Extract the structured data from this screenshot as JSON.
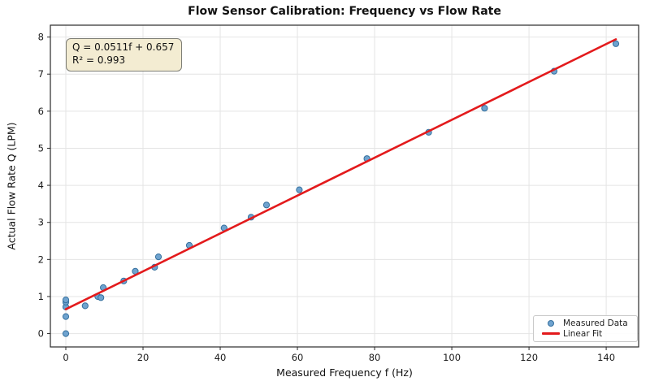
{
  "title": "Flow Sensor Calibration: Frequency vs Flow Rate",
  "annotation": {
    "line1": "Q = 0.0511f + 0.657",
    "line2": "R² = 0.993"
  },
  "legend": {
    "items": [
      {
        "label": "Measured Data",
        "marker": "scatter-dot"
      },
      {
        "label": "Linear Fit",
        "marker": "red-line"
      }
    ],
    "position": "lower right"
  },
  "colors": {
    "marker_fill": "#6fa3cf",
    "marker_edge": "#35709e",
    "fit_line": "#e31a1c",
    "grid": "#e4e4e4",
    "spine": "#2a2a2a",
    "text": "#1a1a1a",
    "annotation_bg": "#f3ecd2",
    "annotation_border": "#7e7e76"
  },
  "chart_data": {
    "type": "scatter",
    "title": "Flow Sensor Calibration: Frequency vs Flow Rate",
    "xlabel": "Measured Frequency f (Hz)",
    "ylabel": "Actual Flow Rate Q (LPM)",
    "xlim": [
      -4.0,
      148.4
    ],
    "ylim": [
      -0.36,
      8.32
    ],
    "x_ticks": [
      0,
      20,
      40,
      60,
      80,
      100,
      120,
      140
    ],
    "y_ticks": [
      0,
      1,
      2,
      3,
      4,
      5,
      6,
      7,
      8
    ],
    "grid": true,
    "legend_position": "lower right",
    "series": [
      {
        "name": "Measured Data",
        "type": "scatter",
        "points": [
          [
            0,
            0.0
          ],
          [
            0,
            0.46
          ],
          [
            0,
            0.72
          ],
          [
            0,
            0.85
          ],
          [
            0,
            0.91
          ],
          [
            5,
            0.75
          ],
          [
            8.3,
            1.0
          ],
          [
            9.1,
            0.97
          ],
          [
            9.7,
            1.24
          ],
          [
            15,
            1.42
          ],
          [
            18,
            1.68
          ],
          [
            23,
            1.79
          ],
          [
            24,
            2.07
          ],
          [
            32,
            2.38
          ],
          [
            41,
            2.85
          ],
          [
            48,
            3.14
          ],
          [
            52,
            3.47
          ],
          [
            60.5,
            3.88
          ],
          [
            78,
            4.72
          ],
          [
            94,
            5.43
          ],
          [
            108.5,
            6.08
          ],
          [
            126.5,
            7.08
          ],
          [
            142.5,
            7.82
          ]
        ]
      },
      {
        "name": "Linear Fit",
        "type": "line",
        "slope": 0.0511,
        "intercept": 0.657,
        "x_start": 0,
        "x_end": 142.5
      }
    ],
    "fit": {
      "equation": "Q = 0.0511f + 0.657",
      "r_squared": 0.993
    }
  }
}
